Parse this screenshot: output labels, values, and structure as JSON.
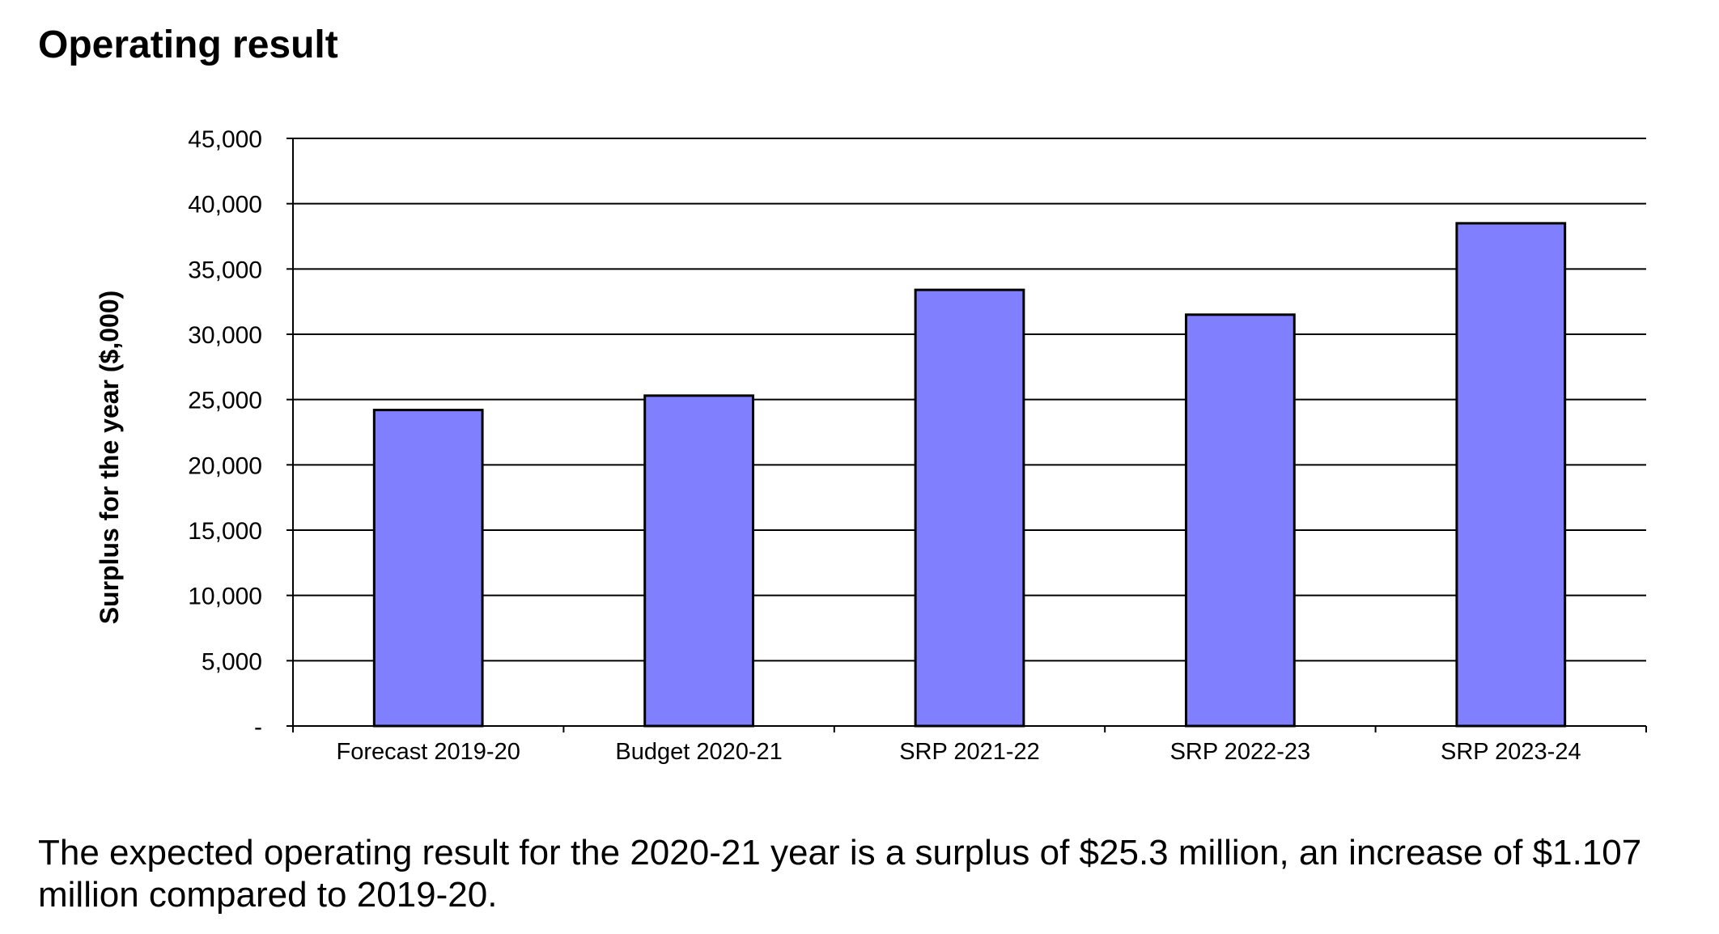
{
  "page": {
    "heading": "Operating result",
    "caption": "The expected operating result for the 2020-21 year is a surplus of $25.3 million, an increase of $1.107 million compared to 2019-20."
  },
  "chart_data": {
    "type": "bar",
    "title": "",
    "xlabel": "",
    "ylabel": "Surplus for the year ($,000)",
    "categories": [
      "Forecast 2019-20",
      "Budget 2020-21",
      "SRP 2021-22",
      "SRP 2022-23",
      "SRP 2023-24"
    ],
    "values": [
      24200,
      25300,
      33400,
      31500,
      38500
    ],
    "ylim": [
      0,
      45000
    ],
    "yticks": [
      0,
      5000,
      10000,
      15000,
      20000,
      25000,
      30000,
      35000,
      40000,
      45000
    ],
    "ytick_labels": [
      "-",
      "5,000",
      "10,000",
      "15,000",
      "20,000",
      "25,000",
      "30,000",
      "35,000",
      "40,000",
      "45,000"
    ],
    "grid": true,
    "legend": "none",
    "colors": {
      "bar_fill": "#8080ff",
      "bar_stroke": "#000000",
      "grid": "#000000"
    }
  }
}
